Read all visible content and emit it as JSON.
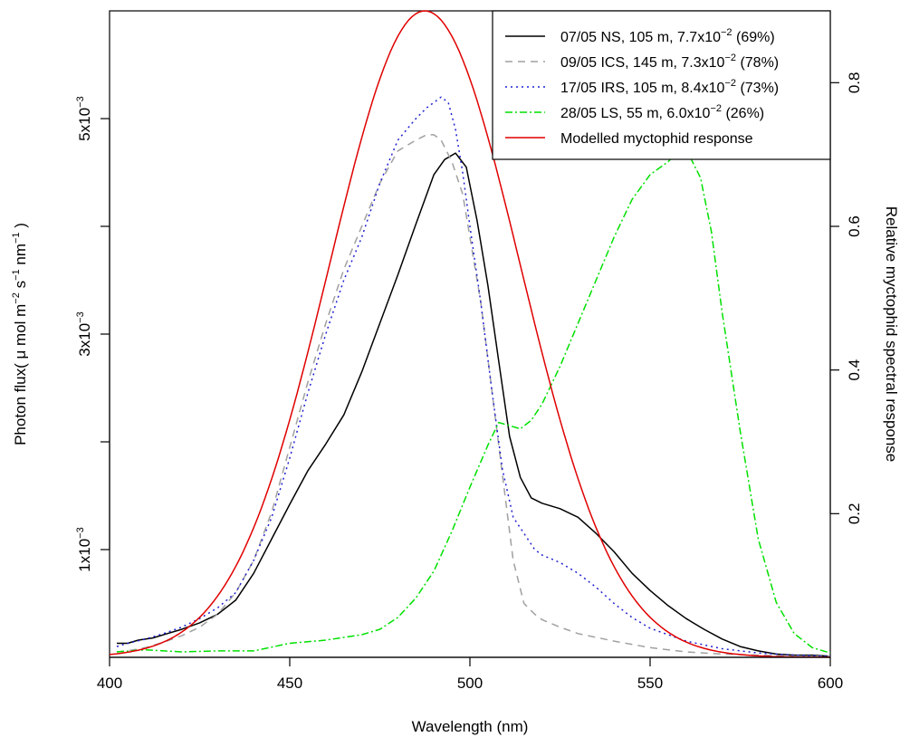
{
  "chart_data": {
    "type": "line",
    "xlabel": "Wavelength (nm)",
    "ylabel_left": {
      "main": "Photon flux( μ mol m",
      "exp1": "−2",
      "mid1": " s",
      "exp2": "−1",
      "mid2": " nm",
      "exp3": "−1",
      "end": " )"
    },
    "ylabel_right": "Relative myctophid spectral response",
    "xlim": [
      400,
      600
    ],
    "ylim_left": [
      0,
      0.006
    ],
    "ylim_right": [
      0,
      0.9
    ],
    "xticks": [
      400,
      450,
      500,
      550,
      600
    ],
    "xtick_labels": [
      "400",
      "450",
      "500",
      "550",
      "600"
    ],
    "yticks_left": [
      0.001,
      0.002,
      0.003,
      0.004,
      0.005
    ],
    "ytick_labels_left": [
      {
        "base": "1x10",
        "exp": "−3"
      },
      {
        "base": "",
        "exp": ""
      },
      {
        "base": "3x10",
        "exp": "−3"
      },
      {
        "base": "",
        "exp": ""
      },
      {
        "base": "5x10",
        "exp": "−3"
      }
    ],
    "yticks_right": [
      0.2,
      0.4,
      0.6,
      0.8
    ],
    "ytick_labels_right": [
      "0.2",
      "0.4",
      "0.6",
      "0.8"
    ],
    "grid": false,
    "legend_position": "top-right",
    "series": [
      {
        "name": "07/05 NS, 105 m, 7.7x10",
        "name_exp": "−2",
        "name_tail": " (69%)",
        "axis": "left",
        "color": "#000000",
        "dash": "",
        "x": [
          402,
          405,
          408,
          412,
          416,
          420,
          425,
          430,
          435,
          440,
          445,
          450,
          455,
          460,
          465,
          470,
          475,
          480,
          485,
          490,
          493,
          496,
          499,
          502,
          505,
          508,
          511,
          514,
          517,
          520,
          525,
          530,
          535,
          540,
          545,
          550,
          555,
          560,
          565,
          570,
          575,
          580,
          585,
          590,
          595,
          600
        ],
        "y": [
          0.00013,
          0.00013,
          0.00016,
          0.00018,
          0.00022,
          0.00026,
          0.00032,
          0.0004,
          0.00053,
          0.00078,
          0.0011,
          0.00142,
          0.00173,
          0.00198,
          0.00225,
          0.00265,
          0.0031,
          0.00355,
          0.00402,
          0.00448,
          0.00462,
          0.00468,
          0.00455,
          0.00405,
          0.00345,
          0.00275,
          0.00205,
          0.00167,
          0.00148,
          0.00143,
          0.00138,
          0.0013,
          0.00115,
          0.00098,
          0.00078,
          0.00062,
          0.00048,
          0.00036,
          0.00026,
          0.00017,
          0.0001,
          6e-05,
          3e-05,
          2e-05,
          2e-05,
          1e-05
        ]
      },
      {
        "name": "09/05 ICS, 145 m, 7.3x10",
        "name_exp": "−2",
        "name_tail": " (78%)",
        "axis": "left",
        "color": "#a0a0a0",
        "dash": "8,6",
        "x": [
          402,
          405,
          410,
          415,
          420,
          425,
          430,
          435,
          440,
          445,
          450,
          455,
          460,
          465,
          470,
          475,
          480,
          485,
          488,
          490,
          492,
          495,
          498,
          500,
          503,
          506,
          509,
          512,
          515,
          518,
          520,
          525,
          530,
          540,
          550,
          560,
          570,
          580,
          590,
          600
        ],
        "y": [
          5e-05,
          6e-05,
          9e-05,
          0.00014,
          0.0002,
          0.00028,
          0.0004,
          0.0006,
          0.0009,
          0.00135,
          0.00195,
          0.00255,
          0.0031,
          0.0036,
          0.004,
          0.0044,
          0.0047,
          0.0048,
          0.00485,
          0.00485,
          0.0048,
          0.0046,
          0.0043,
          0.0039,
          0.0033,
          0.0025,
          0.0017,
          0.0009,
          0.0005,
          0.0004,
          0.00035,
          0.00028,
          0.00022,
          0.00015,
          9e-05,
          5e-05,
          3e-05,
          2e-05,
          1e-05,
          1e-05
        ]
      },
      {
        "name": "17/05 IRS, 105 m, 8.4x10",
        "name_exp": "−2",
        "name_tail": " (73%)",
        "axis": "left",
        "color": "#2020d0",
        "dash": "2,4",
        "x": [
          402,
          405,
          410,
          415,
          420,
          425,
          430,
          435,
          440,
          445,
          450,
          455,
          460,
          465,
          470,
          475,
          480,
          485,
          488,
          490,
          492,
          494,
          496,
          498,
          500,
          503,
          506,
          509,
          512,
          515,
          518,
          520,
          525,
          530,
          535,
          540,
          545,
          550,
          560,
          570,
          580,
          590,
          600
        ],
        "y": [
          0.0001,
          0.00013,
          0.00017,
          0.00022,
          0.00028,
          0.00036,
          0.00046,
          0.0006,
          0.0009,
          0.0013,
          0.00185,
          0.00245,
          0.003,
          0.0035,
          0.0039,
          0.0044,
          0.0048,
          0.005,
          0.0051,
          0.00515,
          0.0052,
          0.00515,
          0.0049,
          0.0045,
          0.004,
          0.0033,
          0.0025,
          0.00175,
          0.0013,
          0.00115,
          0.001,
          0.00095,
          0.00088,
          0.00078,
          0.00065,
          0.0005,
          0.00037,
          0.00027,
          0.00015,
          8e-05,
          4e-05,
          2e-05,
          1e-05
        ]
      },
      {
        "name": "28/05 LS, 55 m, 6.0x10",
        "name_exp": "−2",
        "name_tail": " (26%)",
        "axis": "left",
        "color": "#00e000",
        "dash": "8,3,2,3",
        "x": [
          402,
          410,
          420,
          430,
          440,
          450,
          460,
          470,
          475,
          480,
          485,
          490,
          495,
          500,
          505,
          508,
          511,
          514,
          517,
          520,
          525,
          530,
          535,
          540,
          545,
          550,
          555,
          558,
          561,
          564,
          567,
          570,
          575,
          580,
          585,
          590,
          595,
          600
        ],
        "y": [
          5e-05,
          7e-05,
          5e-05,
          6e-05,
          6e-05,
          0.00013,
          0.00016,
          0.00021,
          0.00026,
          0.00037,
          0.00055,
          0.0008,
          0.00117,
          0.00158,
          0.00197,
          0.00218,
          0.00215,
          0.00212,
          0.0022,
          0.00235,
          0.0027,
          0.0031,
          0.0035,
          0.0039,
          0.00425,
          0.00448,
          0.0046,
          0.0047,
          0.00465,
          0.00445,
          0.00395,
          0.0032,
          0.0021,
          0.0011,
          0.00051,
          0.00022,
          9e-05,
          4e-05
        ]
      },
      {
        "name": "Modelled myctophid response",
        "name_exp": "",
        "name_tail": "",
        "axis": "right",
        "color": "#e00000",
        "dash": "",
        "model": {
          "type": "gaussian",
          "peak_x": 487.5,
          "peak_y": 0.9,
          "sigma": 26.5
        },
        "x": [],
        "y": []
      }
    ]
  }
}
